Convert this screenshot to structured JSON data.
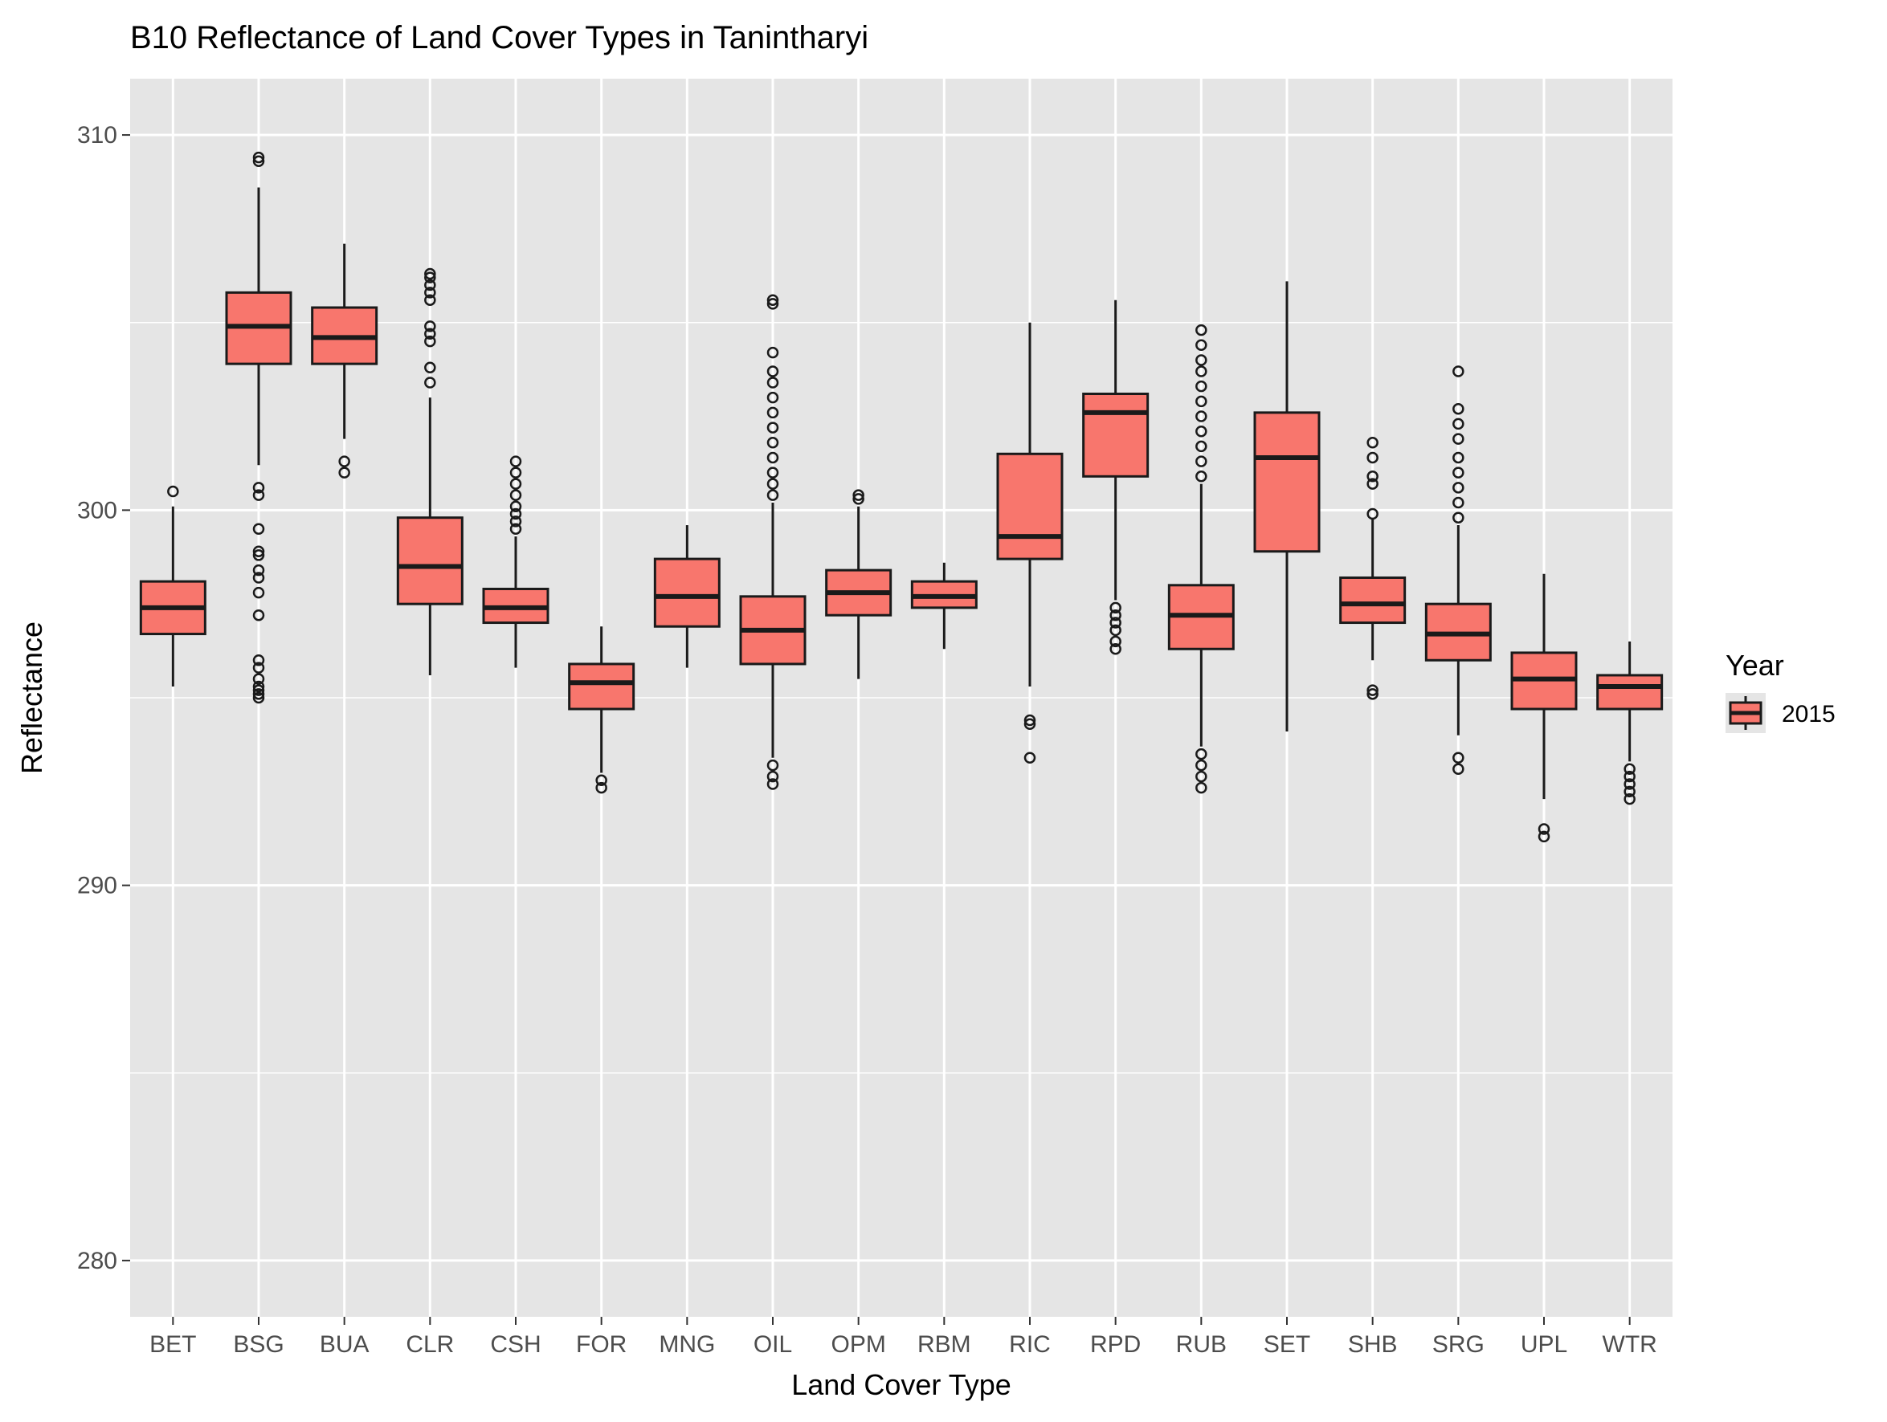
{
  "chart_data": {
    "type": "boxplot",
    "title": "B10 Reflectance of Land Cover Types in Tanintharyi",
    "xlabel": "Land Cover Type",
    "ylabel": "Reflectance",
    "ylim": [
      278.5,
      311.5
    ],
    "yticks": [
      280,
      290,
      300,
      310
    ],
    "grid": true,
    "legend": {
      "title": "Year",
      "position": "right",
      "entries": [
        "2015"
      ]
    },
    "colors": {
      "box_fill": "#f8766d",
      "box_line": "#1a1a1a",
      "panel": "#e5e5e5",
      "grid": "#ffffff"
    },
    "categories": [
      "BET",
      "BSG",
      "BUA",
      "CLR",
      "CSH",
      "FOR",
      "MNG",
      "OIL",
      "OPM",
      "RBM",
      "RIC",
      "RPD",
      "RUB",
      "SET",
      "SHB",
      "SRG",
      "UPL",
      "WTR"
    ],
    "series": [
      {
        "name": "2015",
        "boxes": [
          {
            "category": "BET",
            "whisker_low": 295.3,
            "q1": 296.7,
            "median": 297.4,
            "q3": 298.1,
            "whisker_high": 300.1,
            "outliers": [
              300.5
            ]
          },
          {
            "category": "BSG",
            "whisker_low": 301.2,
            "q1": 303.9,
            "median": 304.9,
            "q3": 305.8,
            "whisker_high": 308.6,
            "outliers": [
              309.3,
              309.4,
              300.6,
              300.4,
              299.5,
              298.9,
              298.8,
              298.4,
              298.2,
              297.8,
              297.2,
              296.0,
              295.8,
              295.5,
              295.3,
              295.2,
              295.1,
              295.0
            ]
          },
          {
            "category": "BUA",
            "whisker_low": 301.9,
            "q1": 303.9,
            "median": 304.6,
            "q3": 305.4,
            "whisker_high": 307.1,
            "outliers": [
              301.3,
              301.0
            ]
          },
          {
            "category": "CLR",
            "whisker_low": 295.6,
            "q1": 297.5,
            "median": 298.5,
            "q3": 299.8,
            "whisker_high": 303.0,
            "outliers": [
              303.4,
              303.8,
              304.5,
              304.7,
              304.9,
              305.6,
              305.8,
              306.0,
              306.2,
              306.3
            ]
          },
          {
            "category": "CSH",
            "whisker_low": 295.8,
            "q1": 297.0,
            "median": 297.4,
            "q3": 297.9,
            "whisker_high": 299.3,
            "outliers": [
              299.5,
              299.7,
              299.9,
              300.1,
              300.4,
              300.7,
              301.0,
              301.3
            ]
          },
          {
            "category": "FOR",
            "whisker_low": 293.0,
            "q1": 294.7,
            "median": 295.4,
            "q3": 295.9,
            "whisker_high": 296.9,
            "outliers": [
              292.8,
              292.6
            ]
          },
          {
            "category": "MNG",
            "whisker_low": 295.8,
            "q1": 296.9,
            "median": 297.7,
            "q3": 298.7,
            "whisker_high": 299.6,
            "outliers": []
          },
          {
            "category": "OIL",
            "whisker_low": 293.4,
            "q1": 295.9,
            "median": 296.8,
            "q3": 297.7,
            "whisker_high": 300.2,
            "outliers": [
              300.4,
              300.7,
              301.0,
              301.4,
              301.8,
              302.2,
              302.6,
              303.0,
              303.4,
              303.7,
              304.2,
              305.5,
              305.6,
              293.2,
              292.9,
              292.7
            ]
          },
          {
            "category": "OPM",
            "whisker_low": 295.5,
            "q1": 297.2,
            "median": 297.8,
            "q3": 298.4,
            "whisker_high": 300.1,
            "outliers": [
              300.3,
              300.4
            ]
          },
          {
            "category": "RBM",
            "whisker_low": 296.3,
            "q1": 297.4,
            "median": 297.7,
            "q3": 298.1,
            "whisker_high": 298.6,
            "outliers": []
          },
          {
            "category": "RIC",
            "whisker_low": 295.3,
            "q1": 298.7,
            "median": 299.3,
            "q3": 301.5,
            "whisker_high": 305.0,
            "outliers": [
              294.4,
              294.3,
              293.4
            ]
          },
          {
            "category": "RPD",
            "whisker_low": 297.6,
            "q1": 300.9,
            "median": 302.6,
            "q3": 303.1,
            "whisker_high": 305.6,
            "outliers": [
              297.4,
              297.2,
              297.0,
              296.8,
              296.5,
              296.3
            ]
          },
          {
            "category": "RUB",
            "whisker_low": 293.7,
            "q1": 296.3,
            "median": 297.2,
            "q3": 298.0,
            "whisker_high": 300.7,
            "outliers": [
              300.9,
              301.3,
              301.7,
              302.1,
              302.5,
              302.9,
              303.3,
              303.7,
              304.0,
              304.4,
              304.8,
              293.5,
              293.2,
              292.9,
              292.6
            ]
          },
          {
            "category": "SET",
            "whisker_low": 294.1,
            "q1": 298.9,
            "median": 301.4,
            "q3": 302.6,
            "whisker_high": 306.1,
            "outliers": []
          },
          {
            "category": "SHB",
            "whisker_low": 296.0,
            "q1": 297.0,
            "median": 297.5,
            "q3": 298.2,
            "whisker_high": 299.8,
            "outliers": [
              299.9,
              300.7,
              300.9,
              301.4,
              301.8,
              295.2,
              295.1
            ]
          },
          {
            "category": "SRG",
            "whisker_low": 294.0,
            "q1": 296.0,
            "median": 296.7,
            "q3": 297.5,
            "whisker_high": 299.6,
            "outliers": [
              299.8,
              300.2,
              300.6,
              301.0,
              301.4,
              301.9,
              302.3,
              302.7,
              303.7,
              293.4,
              293.1
            ]
          },
          {
            "category": "UPL",
            "whisker_low": 292.3,
            "q1": 294.7,
            "median": 295.5,
            "q3": 296.2,
            "whisker_high": 298.3,
            "outliers": [
              291.5,
              291.3
            ]
          },
          {
            "category": "WTR",
            "whisker_low": 293.3,
            "q1": 294.7,
            "median": 295.3,
            "q3": 295.6,
            "whisker_high": 296.5,
            "outliers": [
              293.1,
              292.9,
              292.7,
              292.5,
              292.3
            ]
          }
        ]
      }
    ]
  }
}
